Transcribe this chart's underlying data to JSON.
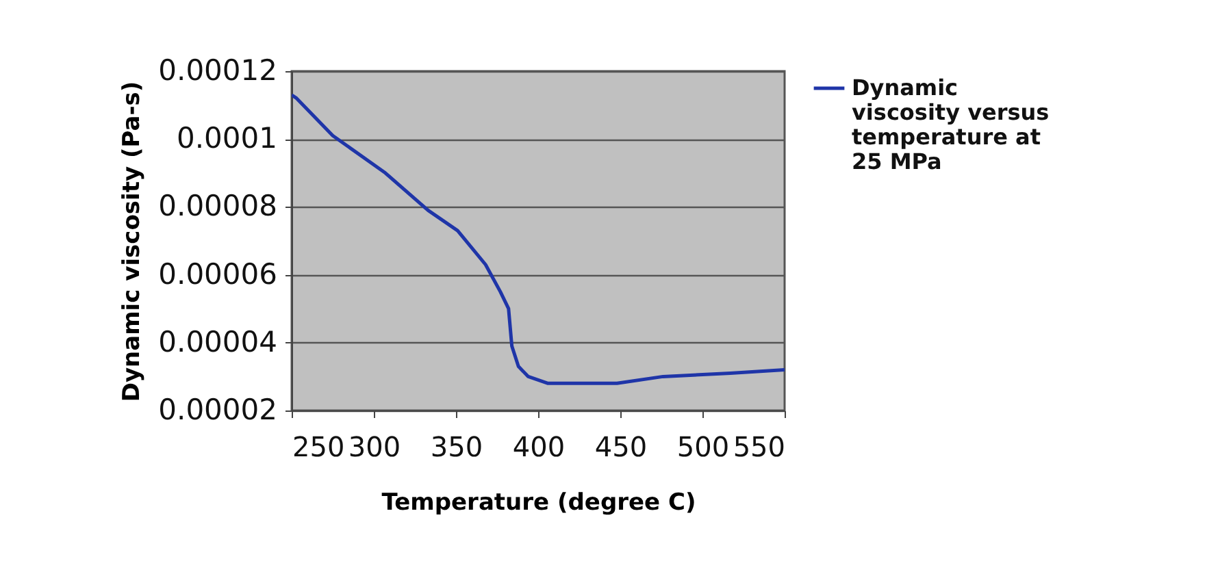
{
  "chart_data": {
    "type": "line",
    "xlabel": "Temperature (degree C)",
    "ylabel": "Dynamic viscosity (Pa-s)",
    "xlim": [
      250,
      550
    ],
    "xticks": [
      250,
      300,
      350,
      400,
      450,
      500,
      550
    ],
    "ylim": [
      2e-05,
      0.00012
    ],
    "yticks": [
      {
        "value": 2e-05,
        "label": "0.00002"
      },
      {
        "value": 4e-05,
        "label": "0.00004"
      },
      {
        "value": 6e-05,
        "label": "0.00006"
      },
      {
        "value": 8e-05,
        "label": "0.00008"
      },
      {
        "value": 0.0001,
        "label": "0.0001"
      },
      {
        "value": 0.00012,
        "label": "0.00012"
      }
    ],
    "grid": "y",
    "legend": "right",
    "marker": "none",
    "series": [
      {
        "name": "Dynamic viscosity versus temperature at 25 MPa",
        "color": "#1f35a8",
        "x": [
          250,
          253,
          275,
          307,
          333,
          351,
          368,
          377,
          382,
          384,
          388,
          394,
          406,
          448,
          476,
          517,
          550
        ],
        "values": [
          0.000113,
          0.000112,
          0.000101,
          9e-05,
          7.9e-05,
          7.3e-05,
          6.3e-05,
          5.5e-05,
          5e-05,
          3.9e-05,
          3.3e-05,
          3e-05,
          2.8e-05,
          2.8e-05,
          3e-05,
          3.1e-05,
          3.2e-05
        ]
      }
    ]
  }
}
